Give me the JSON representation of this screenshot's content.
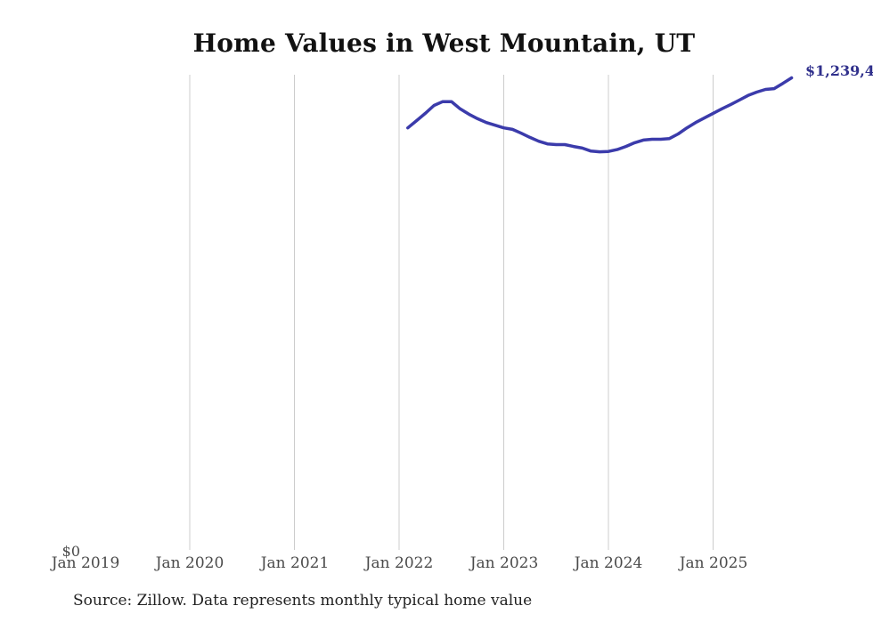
{
  "source": "Source: Zillow. Data represents monthly typical home value",
  "colors": {
    "line": "#3b3bab",
    "end_label": "#30308c",
    "grid": "#cccccc",
    "tick_text": "#4a4a4a",
    "source_text": "#222222",
    "title_text": "#111111"
  },
  "chart_data": {
    "type": "line",
    "title": "Home Values in West Mountain, UT",
    "xlabel": "",
    "ylabel": "",
    "unit": "USD",
    "ylim": [
      0,
      1300000
    ],
    "grid": "vertical-only",
    "legend": "none",
    "y_zero_label": "$0",
    "end_label": "$1,239,4",
    "x_tick_labels": [
      "Jan 2019",
      "Jan 2020",
      "Jan 2021",
      "Jan 2022",
      "Jan 2023",
      "Jan 2024",
      "Jan 2025"
    ],
    "gridline_years": [
      2020,
      2021,
      2022,
      2023,
      2024,
      2025
    ],
    "series": [
      {
        "name": "Monthly typical home value",
        "points": [
          [
            "Feb 2022",
            1108000
          ],
          [
            "Mar 2022",
            1127000
          ],
          [
            "Apr 2022",
            1146000
          ],
          [
            "May 2022",
            1167000
          ],
          [
            "Jun 2022",
            1177000
          ],
          [
            "Jul 2022",
            1177000
          ],
          [
            "Aug 2022",
            1158000
          ],
          [
            "Sep 2022",
            1144000
          ],
          [
            "Oct 2022",
            1132000
          ],
          [
            "Nov 2022",
            1122000
          ],
          [
            "Dec 2022",
            1115000
          ],
          [
            "Jan 2023",
            1108000
          ],
          [
            "Feb 2023",
            1104000
          ],
          [
            "Mar 2023",
            1094000
          ],
          [
            "Apr 2023",
            1083000
          ],
          [
            "May 2023",
            1073000
          ],
          [
            "Jun 2023",
            1066000
          ],
          [
            "Jul 2023",
            1064000
          ],
          [
            "Aug 2023",
            1064000
          ],
          [
            "Sep 2023",
            1059000
          ],
          [
            "Oct 2023",
            1055000
          ],
          [
            "Nov 2023",
            1047000
          ],
          [
            "Dec 2023",
            1045000
          ],
          [
            "Jan 2024",
            1046000
          ],
          [
            "Feb 2024",
            1051000
          ],
          [
            "Mar 2024",
            1059000
          ],
          [
            "Apr 2024",
            1069000
          ],
          [
            "May 2024",
            1076000
          ],
          [
            "Jun 2024",
            1078000
          ],
          [
            "Jul 2024",
            1078000
          ],
          [
            "Aug 2024",
            1080000
          ],
          [
            "Sep 2024",
            1092000
          ],
          [
            "Oct 2024",
            1108000
          ],
          [
            "Nov 2024",
            1122000
          ],
          [
            "Dec 2024",
            1134000
          ],
          [
            "Jan 2025",
            1146000
          ],
          [
            "Feb 2025",
            1158000
          ],
          [
            "Mar 2025",
            1169000
          ],
          [
            "Apr 2025",
            1181000
          ],
          [
            "May 2025",
            1193000
          ],
          [
            "Jun 2025",
            1202000
          ],
          [
            "Jul 2025",
            1209000
          ],
          [
            "Aug 2025",
            1211000
          ],
          [
            "Sep 2025",
            1225000
          ],
          [
            "Oct 2025",
            1239400
          ]
        ]
      }
    ]
  }
}
